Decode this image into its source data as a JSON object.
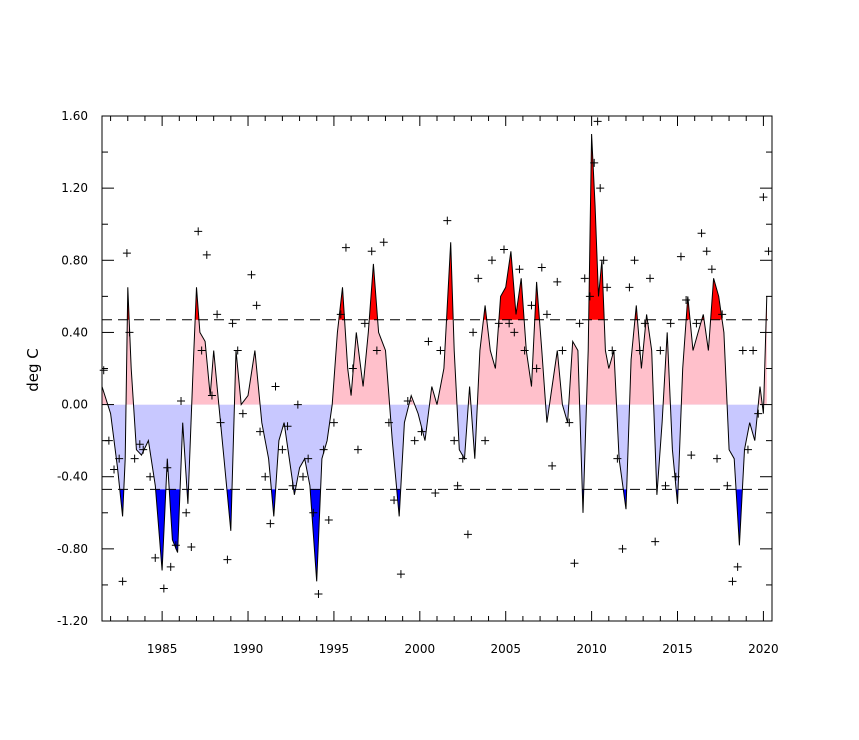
{
  "chart_data": {
    "type": "area",
    "title": "",
    "xlabel": "",
    "ylabel": "deg C",
    "xlim": [
      1981.5,
      2020.5
    ],
    "ylim": [
      -1.2,
      1.6
    ],
    "x_ticks": [
      1985,
      1990,
      1995,
      2000,
      2005,
      2010,
      2015,
      2020
    ],
    "x_tick_labels": [
      "1985",
      "1990",
      "1995",
      "2000",
      "2005",
      "2010",
      "2015",
      "2020"
    ],
    "y_ticks": [
      -1.2,
      -0.8,
      -0.4,
      0.0,
      0.4,
      0.8,
      1.2,
      1.6
    ],
    "y_tick_labels": [
      "-1.20",
      "-0.80",
      "-0.40",
      "0.00",
      "0.40",
      "0.80",
      "1.20",
      "1.60"
    ],
    "threshold_lines": [
      0.47,
      -0.47
    ],
    "colors": {
      "above_threshold": "#ff0000",
      "positive": "#ffc0cb",
      "negative": "#c8c8ff",
      "below_threshold": "#0000ff",
      "line": "#000000"
    },
    "smoothed_series": {
      "x": [
        1981.5,
        1982.0,
        1982.4,
        1982.7,
        1982.85,
        1983.0,
        1983.2,
        1983.5,
        1983.8,
        1984.2,
        1984.6,
        1985.0,
        1985.3,
        1985.6,
        1985.9,
        1986.2,
        1986.5,
        1986.8,
        1987.0,
        1987.2,
        1987.5,
        1987.8,
        1988.0,
        1988.3,
        1988.6,
        1989.0,
        1989.3,
        1989.6,
        1990.0,
        1990.4,
        1990.8,
        1991.2,
        1991.5,
        1991.8,
        1992.1,
        1992.4,
        1992.7,
        1993.0,
        1993.3,
        1993.6,
        1994.0,
        1994.3,
        1994.6,
        1994.9,
        1995.2,
        1995.5,
        1995.8,
        1996.0,
        1996.3,
        1996.7,
        1997.0,
        1997.3,
        1997.6,
        1998.0,
        1998.4,
        1998.8,
        1999.1,
        1999.5,
        1999.9,
        2000.3,
        2000.7,
        2001.0,
        2001.4,
        2001.8,
        2002.0,
        2002.3,
        2002.6,
        2002.9,
        2003.2,
        2003.5,
        2003.8,
        2004.1,
        2004.4,
        2004.7,
        2005.0,
        2005.3,
        2005.6,
        2005.9,
        2006.2,
        2006.5,
        2006.8,
        2007.1,
        2007.4,
        2007.7,
        2008.0,
        2008.3,
        2008.6,
        2008.9,
        2009.2,
        2009.5,
        2009.8,
        2010.0,
        2010.2,
        2010.4,
        2010.6,
        2010.8,
        2011.0,
        2011.3,
        2011.6,
        2012.0,
        2012.3,
        2012.6,
        2012.9,
        2013.2,
        2013.5,
        2013.8,
        2014.1,
        2014.4,
        2014.7,
        2015.0,
        2015.3,
        2015.6,
        2015.9,
        2016.2,
        2016.5,
        2016.8,
        2017.1,
        2017.4,
        2017.7,
        2018.0,
        2018.3,
        2018.6,
        2018.9,
        2019.2,
        2019.5,
        2019.8,
        2020.0,
        2020.2
      ],
      "y": [
        0.1,
        -0.05,
        -0.35,
        -0.62,
        -0.3,
        0.65,
        0.2,
        -0.25,
        -0.28,
        -0.2,
        -0.45,
        -0.92,
        -0.3,
        -0.75,
        -0.82,
        -0.1,
        -0.55,
        0.2,
        0.65,
        0.4,
        0.35,
        0.05,
        0.3,
        0.0,
        -0.3,
        -0.7,
        0.3,
        0.0,
        0.05,
        0.3,
        -0.1,
        -0.3,
        -0.62,
        -0.2,
        -0.1,
        -0.3,
        -0.5,
        -0.35,
        -0.3,
        -0.45,
        -0.98,
        -0.3,
        -0.2,
        0.0,
        0.4,
        0.65,
        0.2,
        0.05,
        0.4,
        0.1,
        0.4,
        0.78,
        0.4,
        0.3,
        -0.2,
        -0.62,
        -0.1,
        0.05,
        -0.05,
        -0.2,
        0.1,
        0.0,
        0.2,
        0.9,
        0.3,
        -0.25,
        -0.3,
        0.1,
        -0.3,
        0.3,
        0.55,
        0.3,
        0.2,
        0.6,
        0.65,
        0.85,
        0.5,
        0.7,
        0.3,
        0.1,
        0.68,
        0.3,
        -0.1,
        0.1,
        0.3,
        0.0,
        -0.1,
        0.35,
        0.3,
        -0.6,
        0.3,
        1.5,
        1.1,
        0.6,
        0.8,
        0.3,
        0.2,
        0.3,
        -0.3,
        -0.58,
        0.25,
        0.55,
        0.2,
        0.5,
        0.3,
        -0.5,
        -0.1,
        0.4,
        -0.25,
        -0.55,
        0.2,
        0.6,
        0.3,
        0.4,
        0.5,
        0.3,
        0.7,
        0.6,
        0.4,
        -0.25,
        -0.3,
        -0.78,
        -0.25,
        -0.1,
        -0.2,
        0.1,
        -0.05,
        0.6
      ]
    },
    "monthly_points": {
      "x": [
        1981.6,
        1981.9,
        1982.2,
        1982.5,
        1982.7,
        1982.95,
        1983.1,
        1983.4,
        1983.7,
        1983.9,
        1984.3,
        1984.6,
        1985.1,
        1985.3,
        1985.5,
        1985.8,
        1986.1,
        1986.4,
        1986.7,
        1987.1,
        1987.3,
        1987.6,
        1987.9,
        1988.2,
        1988.4,
        1988.8,
        1989.1,
        1989.4,
        1989.7,
        1990.2,
        1990.5,
        1990.7,
        1991.0,
        1991.3,
        1991.6,
        1992.0,
        1992.3,
        1992.6,
        1992.9,
        1993.2,
        1993.5,
        1993.8,
        1994.1,
        1994.4,
        1994.7,
        1995.0,
        1995.4,
        1995.7,
        1996.1,
        1996.4,
        1996.8,
        1997.2,
        1997.5,
        1997.9,
        1998.2,
        1998.5,
        1998.9,
        1999.3,
        1999.7,
        2000.1,
        2000.5,
        2000.9,
        2001.2,
        2001.6,
        2002.0,
        2002.2,
        2002.5,
        2002.8,
        2003.1,
        2003.4,
        2003.8,
        2004.2,
        2004.6,
        2004.9,
        2005.2,
        2005.5,
        2005.8,
        2006.1,
        2006.5,
        2006.8,
        2007.1,
        2007.4,
        2007.7,
        2008.0,
        2008.3,
        2008.7,
        2009.0,
        2009.3,
        2009.6,
        2009.9,
        2010.15,
        2010.35,
        2010.5,
        2010.7,
        2010.9,
        2011.2,
        2011.5,
        2011.8,
        2012.2,
        2012.5,
        2012.8,
        2013.1,
        2013.4,
        2013.7,
        2014.0,
        2014.3,
        2014.6,
        2014.9,
        2015.2,
        2015.5,
        2015.8,
        2016.1,
        2016.4,
        2016.7,
        2017.0,
        2017.3,
        2017.6,
        2017.9,
        2018.2,
        2018.5,
        2018.8,
        2019.1,
        2019.4,
        2019.7,
        2020.0,
        2020.3
      ],
      "y": [
        0.19,
        -0.2,
        -0.36,
        -0.3,
        -0.98,
        0.84,
        0.4,
        -0.3,
        -0.22,
        -0.25,
        -0.4,
        -0.85,
        -1.02,
        -0.35,
        -0.9,
        -0.78,
        0.02,
        -0.6,
        -0.79,
        0.96,
        0.3,
        0.83,
        0.05,
        0.5,
        -0.1,
        -0.86,
        0.45,
        0.3,
        -0.05,
        0.72,
        0.55,
        -0.15,
        -0.4,
        -0.66,
        0.1,
        -0.25,
        -0.12,
        -0.45,
        0.0,
        -0.4,
        -0.3,
        -0.6,
        -1.05,
        -0.25,
        -0.64,
        -0.1,
        0.5,
        0.87,
        0.2,
        -0.25,
        0.45,
        0.85,
        0.3,
        0.9,
        -0.1,
        -0.53,
        -0.94,
        0.02,
        -0.2,
        -0.15,
        0.35,
        -0.49,
        0.3,
        1.02,
        -0.2,
        -0.45,
        -0.3,
        -0.72,
        0.4,
        0.7,
        -0.2,
        0.8,
        0.45,
        0.86,
        0.45,
        0.4,
        0.75,
        0.3,
        0.55,
        0.2,
        0.76,
        0.5,
        -0.34,
        0.68,
        0.3,
        -0.1,
        -0.88,
        0.45,
        0.7,
        0.6,
        1.34,
        1.57,
        1.2,
        0.8,
        0.65,
        0.3,
        -0.3,
        -0.8,
        0.65,
        0.8,
        0.3,
        0.45,
        0.7,
        -0.76,
        0.3,
        -0.45,
        0.45,
        -0.4,
        0.82,
        0.58,
        -0.28,
        0.45,
        0.95,
        0.85,
        0.75,
        -0.3,
        0.5,
        -0.45,
        -0.98,
        -0.9,
        0.3,
        -0.25,
        0.3,
        -0.05,
        1.15,
        0.85
      ]
    }
  }
}
